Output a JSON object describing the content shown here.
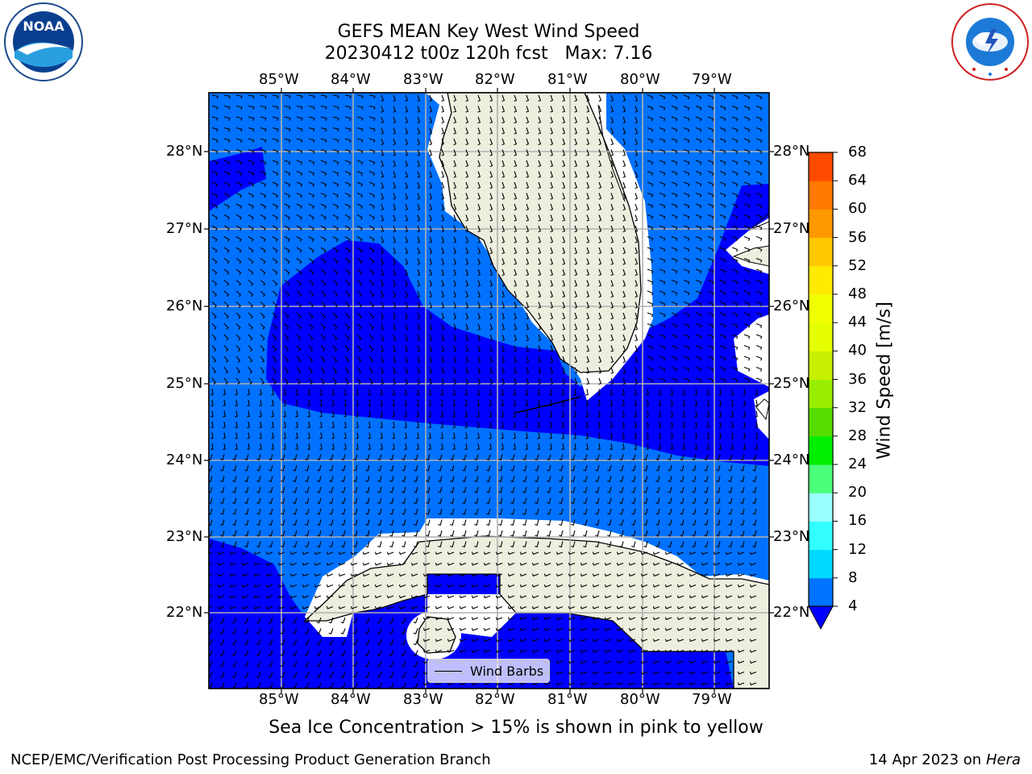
{
  "header": {
    "title_line1": "GEFS MEAN Key West Wind Speed",
    "title_line2": "20230412 t00z 120h fcst   Max: 7.16"
  },
  "logos": {
    "left": {
      "name": "noaa-logo",
      "text": "NOAA"
    },
    "right": {
      "name": "nws-logo",
      "text": "NATIONAL WEATHER SERVICE"
    }
  },
  "map": {
    "lon_labels": [
      "85°W",
      "84°W",
      "83°W",
      "82°W",
      "81°W",
      "80°W",
      "79°W"
    ],
    "lat_labels": [
      "28°N",
      "27°N",
      "26°N",
      "25°N",
      "24°N",
      "23°N",
      "22°N"
    ],
    "legend_label": "Wind Barbs",
    "colors": {
      "ocean_4_8": "#0072ff",
      "ocean_0_4": "#0000ff",
      "land": "#eeeedf",
      "coast_gap": "#ffffff",
      "grid": "#b0b0b0"
    }
  },
  "colorbar": {
    "label": "Wind Speed [m/s]",
    "ticks": [
      "4",
      "8",
      "12",
      "16",
      "20",
      "24",
      "28",
      "32",
      "36",
      "40",
      "44",
      "48",
      "52",
      "56",
      "60",
      "64",
      "68"
    ],
    "colors": [
      "#0073ff",
      "#00d9ff",
      "#33ffff",
      "#99ffff",
      "#4cff7a",
      "#00ee00",
      "#55dd00",
      "#99ee00",
      "#c8f000",
      "#e6ff00",
      "#f0ff00",
      "#ffea00",
      "#ffc800",
      "#ff9900",
      "#ff7a00",
      "#ff4b00",
      "#ff0000"
    ],
    "under_color": "#0000ff"
  },
  "footer": {
    "note": "Sea Ice Concentration > 15% is shown in pink to yellow",
    "left_credit": "NCEP/EMC/Verification Post Processing Product Generation Branch",
    "right_date": "14 Apr 2023 on",
    "right_host": "Hera"
  }
}
